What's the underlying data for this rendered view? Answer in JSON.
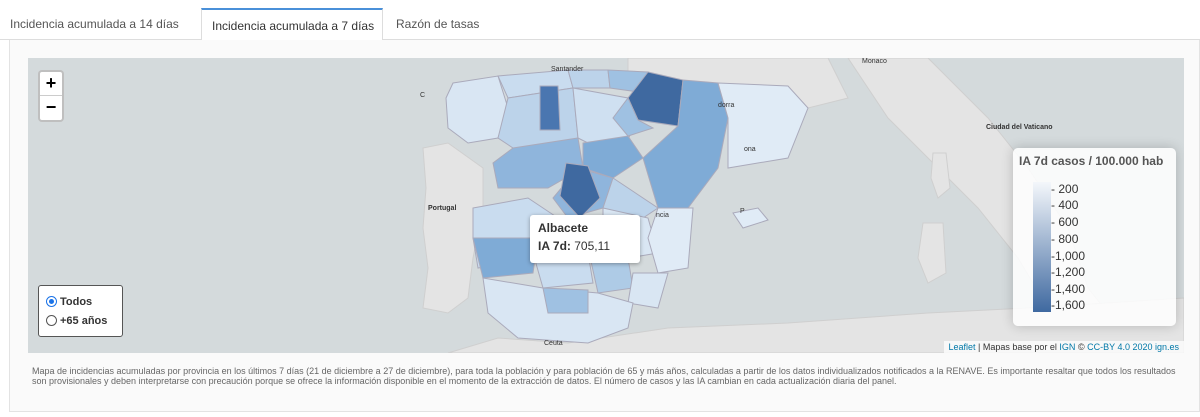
{
  "tabs": [
    {
      "label": "Incidencia acumulada a 14 días"
    },
    {
      "label": "Incidencia acumulada a 7 días"
    },
    {
      "label": "Razón de tasas"
    }
  ],
  "map": {
    "zoom_in": "+",
    "zoom_out": "−",
    "place_labels": {
      "santander": "Santander",
      "andorra": "dorra",
      "barcelona": "ona",
      "portugal": "Portugal",
      "valencia": "ncia",
      "palma": "P",
      "ceuta": "Ceuta",
      "vaticano": "Ciudad del Vaticano",
      "monaco": "Monaco",
      "coruna": "C"
    },
    "tooltip": {
      "province": "Albacete",
      "label": "IA 7d:",
      "value": "705,11"
    },
    "legend": {
      "title": "IA 7d casos / 100.000 hab",
      "ticks": [
        "200",
        "400",
        "600",
        "800",
        "1,000",
        "1,200",
        "1,400",
        "1,600"
      ],
      "color_low": "#f4f7fb",
      "color_high": "#3f69a0"
    },
    "population_filter": {
      "options": [
        "Todos",
        "+65 años"
      ],
      "selected": "Todos"
    },
    "attribution": {
      "leaflet": "Leaflet",
      "sep": " | Mapas base por el ",
      "ign": "IGN",
      "license": "CC-BY 4.0 2020 ign.es"
    }
  },
  "caption": "Mapa de incidencias acumuladas por provincia en los últimos 7 días (21 de diciembre a 27 de diciembre), para toda la población y para población de 65 y más años, calculadas a partir de los datos individualizados notificados a la RENAVE. Es importante resaltar que todos los resultados son provisionales y deben interpretarse con precaución porque se ofrece la información disponible en el momento de la extracción de datos. El número de casos y las IA cambian en cada actualización diaria del panel."
}
